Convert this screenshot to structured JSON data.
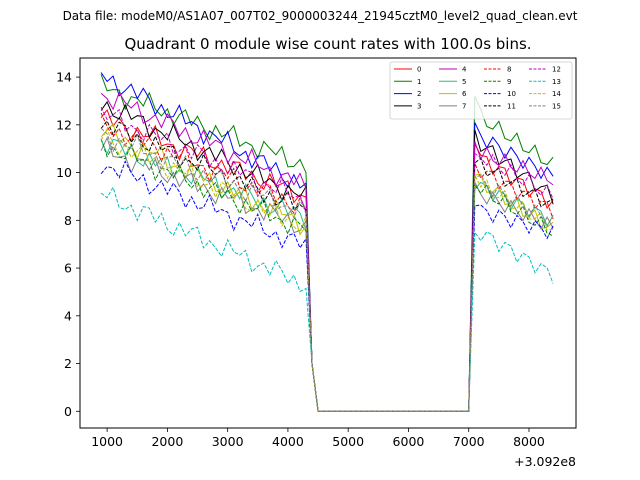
{
  "figure": {
    "suptitle": "Data file: modeM0/AS1A07_007T02_9000003244_21945cztM0_level2_quad_clean.evt"
  },
  "chart_data": {
    "type": "line",
    "title": "Quadrant 0 module wise count rates with 100.0s bins.",
    "xlabel": "",
    "ylabel": "",
    "x_offset_label": "+3.092e8",
    "xlim": [
      550,
      8780
    ],
    "ylim": [
      -0.7,
      14.8
    ],
    "xticks": [
      1000,
      2000,
      3000,
      4000,
      5000,
      6000,
      7000,
      8000
    ],
    "yticks": [
      0,
      2,
      4,
      6,
      8,
      10,
      12,
      14
    ],
    "grid": false,
    "legend_position": "top-right",
    "x": [
      900,
      1000,
      1100,
      1200,
      1300,
      1400,
      1500,
      1600,
      1700,
      1800,
      1900,
      2000,
      2100,
      2200,
      2300,
      2400,
      2500,
      2600,
      2700,
      2800,
      2900,
      3000,
      3100,
      3200,
      3300,
      3400,
      3500,
      3600,
      3700,
      3800,
      3900,
      4000,
      4100,
      4200,
      4300,
      4400,
      4500,
      4600,
      4700,
      4800,
      4900,
      5000,
      5100,
      5200,
      5300,
      5400,
      5500,
      5600,
      5700,
      5800,
      5900,
      6000,
      6100,
      6200,
      6300,
      6400,
      6500,
      6600,
      6700,
      6800,
      6900,
      7000,
      7100,
      7200,
      7300,
      7400,
      7500,
      7600,
      7700,
      7800,
      7900,
      8000,
      8100,
      8200,
      8300,
      8400
    ],
    "gap": {
      "start": 4500,
      "end": 7000,
      "value": 0
    },
    "series": [
      {
        "name": "0",
        "color": "#ff0000",
        "dash": "solid",
        "level": 12.3,
        "end_level": 9.0,
        "ramp_peak": 11.2,
        "post_start": 10.6,
        "post_end": 8.7
      },
      {
        "name": "1",
        "color": "#008000",
        "dash": "solid",
        "level": 13.6,
        "end_level": 10.3,
        "ramp_peak": 13.2,
        "post_start": 12.3,
        "post_end": 10.3
      },
      {
        "name": "2",
        "color": "#0000ff",
        "dash": "solid",
        "level": 14.1,
        "end_level": 9.4,
        "ramp_peak": 12.1,
        "post_start": 11.5,
        "post_end": 9.8
      },
      {
        "name": "3",
        "color": "#000000",
        "dash": "solid",
        "level": 12.9,
        "end_level": 8.9,
        "ramp_peak": 11.8,
        "post_start": 11.2,
        "post_end": 9.0
      },
      {
        "name": "4",
        "color": "#bf00bf",
        "dash": "solid",
        "level": 13.3,
        "end_level": 9.4,
        "ramp_peak": 11.3,
        "post_start": 10.8,
        "post_end": 9.7
      },
      {
        "name": "5",
        "color": "#1fbf8f",
        "dash": "solid",
        "level": 11.3,
        "end_level": 8.1,
        "ramp_peak": 9.3,
        "post_start": 9.4,
        "post_end": 8.0
      },
      {
        "name": "6",
        "color": "#bfbf00",
        "dash": "solid",
        "level": 11.8,
        "end_level": 7.8,
        "ramp_peak": 9.9,
        "post_start": 9.6,
        "post_end": 7.6
      },
      {
        "name": "7",
        "color": "#808080",
        "dash": "solid",
        "level": 11.0,
        "end_level": 7.7,
        "ramp_peak": 9.6,
        "post_start": 9.1,
        "post_end": 7.7
      },
      {
        "name": "8",
        "color": "#ff0000",
        "dash": "dashed",
        "level": 12.0,
        "end_level": 8.5,
        "ramp_peak": 10.4,
        "post_start": 10.1,
        "post_end": 8.4
      },
      {
        "name": "9",
        "color": "#008000",
        "dash": "dashed",
        "level": 11.2,
        "end_level": 7.6,
        "ramp_peak": 9.5,
        "post_start": 9.3,
        "post_end": 7.5
      },
      {
        "name": "10",
        "color": "#0000ff",
        "dash": "dashed",
        "level": 10.4,
        "end_level": 6.9,
        "ramp_peak": 8.6,
        "post_start": 8.4,
        "post_end": 7.5
      },
      {
        "name": "11",
        "color": "#000000",
        "dash": "dashed",
        "level": 12.1,
        "end_level": 8.4,
        "ramp_peak": 10.4,
        "post_start": 10.3,
        "post_end": 8.6
      },
      {
        "name": "12",
        "color": "#bf00bf",
        "dash": "dashed",
        "level": 12.5,
        "end_level": 8.8,
        "ramp_peak": 10.8,
        "post_start": 10.7,
        "post_end": 9.0
      },
      {
        "name": "13",
        "color": "#00bfbf",
        "dash": "dashed",
        "level": 9.1,
        "end_level": 5.3,
        "ramp_peak": 7.5,
        "post_start": 7.5,
        "post_end": 5.7
      },
      {
        "name": "14",
        "color": "#bfbf00",
        "dash": "dashed",
        "level": 11.5,
        "end_level": 7.7,
        "ramp_peak": 9.9,
        "post_start": 9.5,
        "post_end": 7.7
      },
      {
        "name": "15",
        "color": "#808080",
        "dash": "dashed",
        "level": 11.6,
        "end_level": 8.3,
        "ramp_peak": 9.8,
        "post_start": 9.6,
        "post_end": 7.9
      }
    ]
  }
}
